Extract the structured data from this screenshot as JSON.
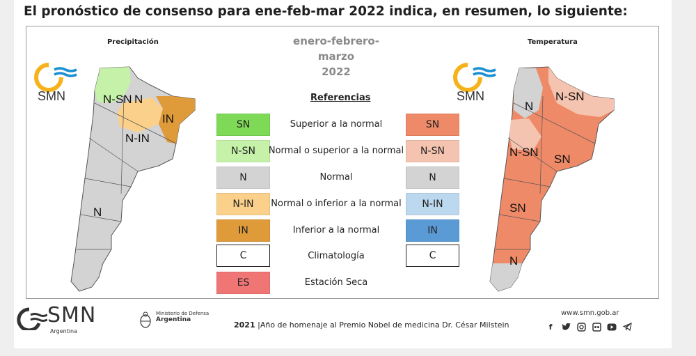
{
  "headline": "El pronóstico de consenso para  ene-feb-mar 2022 indica, en resumen, lo siguiente:",
  "center_title": {
    "line1": "enero-febrero-marzo",
    "line2": "2022"
  },
  "maps": {
    "precip": {
      "title": "Precipitación",
      "logo": "SMN",
      "labels": [
        "N-SN",
        "N",
        "IN",
        "N-IN",
        "N"
      ]
    },
    "temp": {
      "title": "Temperatura",
      "logo": "SMN",
      "labels": [
        "N",
        "N-SN",
        "N-SN",
        "SN",
        "SN",
        "N"
      ]
    }
  },
  "references": {
    "title": "Referencias",
    "rows": [
      {
        "left": "SN",
        "label": "Superior a la normal",
        "right": "SN"
      },
      {
        "left": "N-SN",
        "label": "Normal o superior a la normal",
        "right": "N-SN"
      },
      {
        "left": "N",
        "label": "Normal",
        "right": "N"
      },
      {
        "left": "N-IN",
        "label": "Normal o inferior a la normal",
        "right": "N-IN"
      },
      {
        "left": "IN",
        "label": "Inferior a la normal",
        "right": "IN"
      },
      {
        "left": "C",
        "label": "Climatología",
        "right": "C"
      },
      {
        "left": "ES",
        "label": "Estación Seca",
        "right": ""
      }
    ]
  },
  "colors": {
    "precip_sn": "#7ed957",
    "precip_nsn": "#c5f2a8",
    "neutral": "#d3d3d3",
    "precip_nin": "#fbd08a",
    "precip_in": "#df9a3a",
    "dry": "#f07575",
    "temp_sn": "#ee8a68",
    "temp_nsn": "#f5c4b0",
    "temp_nin": "#bcd8ef",
    "temp_in": "#5b9bd5",
    "smn_blue": "#1a8fd1",
    "smn_yellow": "#f6b21b"
  },
  "footer": {
    "logo": "SMN",
    "logo_sub": "Argentina",
    "ministry_line1": "Ministerio de Defensa",
    "ministry_line2": "Argentina",
    "homage_year": "2021",
    "homage_text": "|Año de homenaje al Premio Nobel de medicina Dr. César Milstein",
    "website": "www.smn.gob.ar",
    "social_icons": [
      "facebook-icon",
      "twitter-icon",
      "instagram-icon",
      "flickr-icon",
      "youtube-icon",
      "telegram-icon"
    ]
  }
}
